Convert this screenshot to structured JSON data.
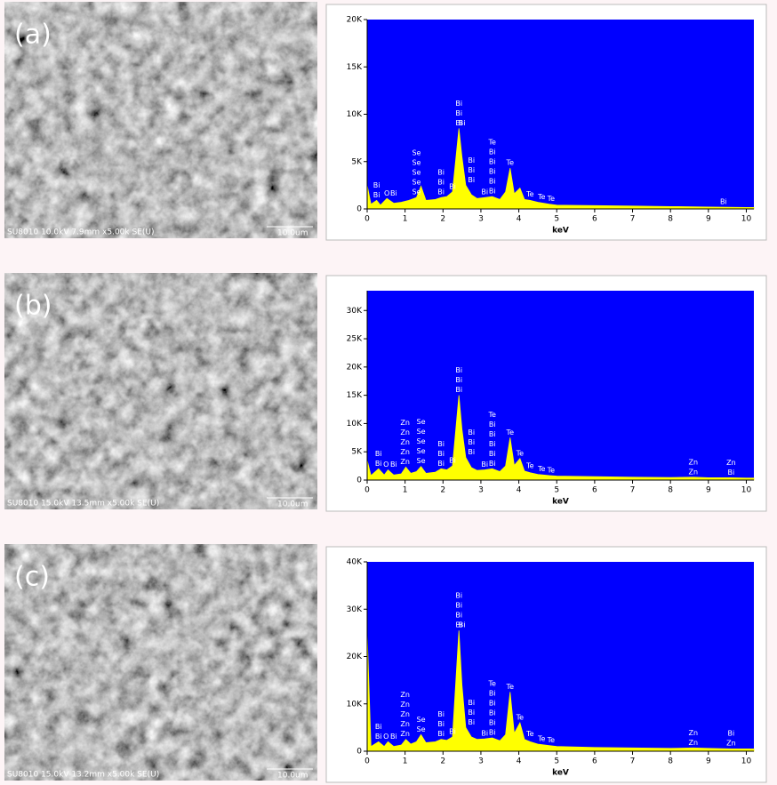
{
  "panels": [
    {
      "label": "(a)",
      "caption": "SU8010 10.0kV 7.9mm x5.00k SE(U)",
      "scale": "10.0um"
    },
    {
      "label": "(b)",
      "caption": "SU8010 15.0kV 13.5mm x5.00k SE(U)",
      "scale": "10.0um"
    },
    {
      "label": "(c)",
      "caption": "SU8010 15.0kV 13.2mm x5.00k SE(U)",
      "scale": "10.0um"
    }
  ],
  "chart_data": [
    {
      "type": "area",
      "xlabel": "keV",
      "color": "#ffff00",
      "background": "#0000ff",
      "xlim": [
        0,
        10.2
      ],
      "ylim": [
        0,
        20000
      ],
      "xticks": [
        0,
        1,
        2,
        3,
        4,
        5,
        6,
        7,
        8,
        9,
        10
      ],
      "yticks": [
        0,
        {
          "value": 5000,
          "label": "5K"
        },
        {
          "value": 10000,
          "label": "10K"
        },
        {
          "value": 15000,
          "label": "15K"
        },
        {
          "value": 20000,
          "label": "20K"
        }
      ],
      "x": [
        0,
        0.1,
        0.25,
        0.35,
        0.52,
        0.7,
        0.9,
        1.1,
        1.3,
        1.42,
        1.55,
        1.8,
        1.95,
        2.1,
        2.25,
        2.42,
        2.5,
        2.6,
        2.75,
        2.9,
        3.1,
        3.3,
        3.5,
        3.65,
        3.77,
        3.88,
        4.03,
        4.15,
        4.3,
        4.5,
        4.8,
        5,
        6,
        7,
        8,
        9,
        10,
        10.2
      ],
      "values": [
        2500,
        500,
        900,
        400,
        1100,
        600,
        700,
        900,
        1200,
        2400,
        900,
        1000,
        1200,
        1300,
        1800,
        8500,
        5500,
        2500,
        1500,
        1100,
        1200,
        1300,
        1000,
        1800,
        4300,
        1600,
        2200,
        1000,
        900,
        700,
        500,
        400,
        350,
        300,
        250,
        200,
        150,
        150
      ],
      "annotations": [
        {
          "x": 0.25,
          "labels": [
            "Bi",
            "Bi"
          ]
        },
        {
          "x": 0.52,
          "labels": [
            "O"
          ]
        },
        {
          "x": 0.7,
          "labels": [
            "Bi"
          ]
        },
        {
          "x": 1.3,
          "labels": [
            "Se",
            "Se",
            "Se",
            "Se",
            "Se"
          ]
        },
        {
          "x": 1.95,
          "labels": [
            "Bi",
            "Bi",
            "Bi"
          ]
        },
        {
          "x": 2.25,
          "labels": [
            "Bi"
          ]
        },
        {
          "x": 2.42,
          "labels": [
            "Bi",
            "Bi",
            "Bi"
          ]
        },
        {
          "x": 2.5,
          "labels": [
            "Bi"
          ]
        },
        {
          "x": 2.75,
          "labels": [
            "Bi",
            "Bi",
            "Bi"
          ]
        },
        {
          "x": 3.1,
          "labels": [
            "Bi"
          ]
        },
        {
          "x": 3.3,
          "labels": [
            "Te",
            "Bi",
            "Bi",
            "Bi",
            "Bi",
            "Bi"
          ]
        },
        {
          "x": 3.77,
          "labels": [
            "Te"
          ]
        },
        {
          "x": 4.3,
          "labels": [
            "Te"
          ]
        },
        {
          "x": 4.6,
          "labels": [
            "Te"
          ]
        },
        {
          "x": 4.85,
          "labels": [
            "Te"
          ]
        },
        {
          "x": 9.4,
          "labels": [
            "Bi"
          ]
        }
      ]
    },
    {
      "type": "area",
      "xlabel": "keV",
      "color": "#ffff00",
      "background": "#0000ff",
      "xlim": [
        0,
        10.2
      ],
      "ylim": [
        0,
        33500
      ],
      "xticks": [
        0,
        1,
        2,
        3,
        4,
        5,
        6,
        7,
        8,
        9,
        10
      ],
      "yticks": [
        0,
        {
          "value": 5000,
          "label": "5K"
        },
        {
          "value": 10000,
          "label": "10K"
        },
        {
          "value": 15000,
          "label": "15K"
        },
        {
          "value": 20000,
          "label": "20K"
        },
        {
          "value": 25000,
          "label": "25K"
        },
        {
          "value": 30000,
          "label": "30K"
        }
      ],
      "x": [
        0,
        0.1,
        0.3,
        0.45,
        0.55,
        0.7,
        0.9,
        1.02,
        1.15,
        1.3,
        1.42,
        1.55,
        1.8,
        1.95,
        2.1,
        2.25,
        2.42,
        2.5,
        2.6,
        2.75,
        2.9,
        3.1,
        3.3,
        3.5,
        3.65,
        3.77,
        3.88,
        4.03,
        4.15,
        4.3,
        4.5,
        4.8,
        5,
        6,
        7,
        8,
        8.6,
        9,
        9.6,
        10,
        10.2
      ],
      "values": [
        3500,
        800,
        2000,
        900,
        1800,
        900,
        1100,
        2300,
        1200,
        1500,
        2400,
        1200,
        1400,
        2000,
        1800,
        2500,
        15000,
        9000,
        4000,
        2200,
        1700,
        1800,
        2000,
        1500,
        2500,
        7500,
        2600,
        3800,
        1600,
        1300,
        1000,
        800,
        700,
        600,
        500,
        450,
        500,
        400,
        400,
        350,
        350
      ],
      "annotations": [
        {
          "x": 0.3,
          "labels": [
            "Bi",
            "Bi"
          ]
        },
        {
          "x": 0.5,
          "labels": [
            "O"
          ]
        },
        {
          "x": 0.7,
          "labels": [
            "Bi"
          ]
        },
        {
          "x": 1.0,
          "labels": [
            "Zn",
            "Zn",
            "Zn",
            "Zn",
            "Zn"
          ]
        },
        {
          "x": 1.42,
          "labels": [
            "Se",
            "Se",
            "Se",
            "Se",
            "Se"
          ]
        },
        {
          "x": 1.95,
          "labels": [
            "Bi",
            "Bi",
            "Bi"
          ]
        },
        {
          "x": 2.25,
          "labels": [
            "Bi"
          ]
        },
        {
          "x": 2.42,
          "labels": [
            "Bi",
            "Bi",
            "Bi"
          ]
        },
        {
          "x": 2.75,
          "labels": [
            "Bi",
            "Bi",
            "Bi"
          ]
        },
        {
          "x": 3.1,
          "labels": [
            "Bi"
          ]
        },
        {
          "x": 3.3,
          "labels": [
            "Te",
            "Bi",
            "Bi",
            "Bi",
            "Bi",
            "Bi"
          ]
        },
        {
          "x": 3.77,
          "labels": [
            "Te"
          ]
        },
        {
          "x": 4.03,
          "labels": [
            "Te"
          ]
        },
        {
          "x": 4.3,
          "labels": [
            "Te"
          ]
        },
        {
          "x": 4.6,
          "labels": [
            "Te"
          ]
        },
        {
          "x": 4.85,
          "labels": [
            "Te"
          ]
        },
        {
          "x": 8.6,
          "labels": [
            "Zn",
            "Zn"
          ]
        },
        {
          "x": 9.6,
          "labels": [
            "Zn",
            "Bi"
          ]
        }
      ]
    },
    {
      "type": "area",
      "xlabel": "keV",
      "color": "#ffff00",
      "background": "#0000ff",
      "xlim": [
        0,
        10.2
      ],
      "ylim": [
        0,
        40000
      ],
      "xticks": [
        0,
        1,
        2,
        3,
        4,
        5,
        6,
        7,
        8,
        9,
        10
      ],
      "yticks": [
        0,
        {
          "value": 10000,
          "label": "10K"
        },
        {
          "value": 20000,
          "label": "20K"
        },
        {
          "value": 30000,
          "label": "30K"
        },
        {
          "value": 40000,
          "label": "40K"
        }
      ],
      "x": [
        0,
        0.1,
        0.3,
        0.45,
        0.55,
        0.7,
        0.9,
        1.02,
        1.15,
        1.3,
        1.42,
        1.55,
        1.8,
        1.95,
        2.1,
        2.25,
        2.42,
        2.5,
        2.6,
        2.75,
        2.9,
        3.1,
        3.3,
        3.5,
        3.65,
        3.77,
        3.88,
        4.03,
        4.15,
        4.3,
        4.5,
        4.8,
        5,
        6,
        7,
        8,
        8.6,
        9,
        9.6,
        10,
        10.2
      ],
      "values": [
        25000,
        1000,
        2000,
        1000,
        2000,
        1000,
        1300,
        2500,
        1500,
        2000,
        3500,
        1800,
        2000,
        2500,
        2300,
        3000,
        25500,
        14000,
        5000,
        3000,
        2500,
        2600,
        2800,
        2200,
        3500,
        12500,
        3800,
        6000,
        2500,
        2000,
        1500,
        1200,
        1000,
        800,
        700,
        600,
        700,
        600,
        500,
        500,
        500
      ],
      "annotations": [
        {
          "x": 0.3,
          "labels": [
            "Bi",
            "Bi"
          ]
        },
        {
          "x": 0.5,
          "labels": [
            "O"
          ]
        },
        {
          "x": 0.7,
          "labels": [
            "Bi"
          ]
        },
        {
          "x": 1.0,
          "labels": [
            "Zn",
            "Zn",
            "Zn",
            "Zn",
            "Zn"
          ]
        },
        {
          "x": 1.42,
          "labels": [
            "Se",
            "Se"
          ]
        },
        {
          "x": 1.95,
          "labels": [
            "Bi",
            "Bi",
            "Bi"
          ]
        },
        {
          "x": 2.25,
          "labels": [
            "Bi"
          ]
        },
        {
          "x": 2.42,
          "labels": [
            "Bi",
            "Bi",
            "Bi",
            "Bi"
          ]
        },
        {
          "x": 2.5,
          "labels": [
            "Bi"
          ]
        },
        {
          "x": 2.75,
          "labels": [
            "Bi",
            "Bi",
            "Bi"
          ]
        },
        {
          "x": 3.1,
          "labels": [
            "Bi"
          ]
        },
        {
          "x": 3.3,
          "labels": [
            "Te",
            "Bi",
            "Bi",
            "Bi",
            "Bi",
            "Bi"
          ]
        },
        {
          "x": 3.77,
          "labels": [
            "Te"
          ]
        },
        {
          "x": 4.03,
          "labels": [
            "Te"
          ]
        },
        {
          "x": 4.3,
          "labels": [
            "Te"
          ]
        },
        {
          "x": 4.6,
          "labels": [
            "Te"
          ]
        },
        {
          "x": 4.85,
          "labels": [
            "Te"
          ]
        },
        {
          "x": 8.6,
          "labels": [
            "Zn",
            "Zn"
          ]
        },
        {
          "x": 9.6,
          "labels": [
            "Bi",
            "Zn"
          ]
        }
      ]
    }
  ]
}
